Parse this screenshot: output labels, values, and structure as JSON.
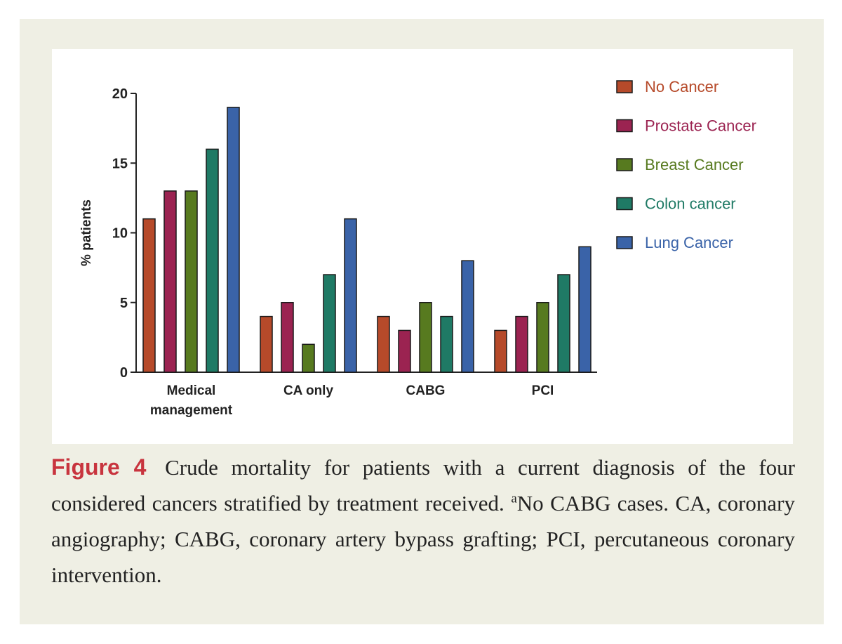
{
  "chart_data": {
    "type": "bar",
    "title": "",
    "xlabel": "",
    "ylabel": "% patients",
    "ylim": [
      0,
      20
    ],
    "yticks": [
      "0",
      "5",
      "10",
      "15",
      "20"
    ],
    "categories": [
      [
        "Medical",
        "management"
      ],
      [
        "CA only"
      ],
      [
        "CABG"
      ],
      [
        "PCI"
      ]
    ],
    "series": [
      {
        "name": "No Cancer",
        "color": "#b64a2a",
        "values": [
          11,
          4,
          4,
          3
        ]
      },
      {
        "name": "Prostate Cancer",
        "color": "#9b2351",
        "values": [
          13,
          5,
          3,
          4
        ]
      },
      {
        "name": "Breast Cancer",
        "color": "#577a1f",
        "values": [
          13,
          2,
          5,
          5
        ]
      },
      {
        "name": "Colon cancer",
        "color": "#1f7a65",
        "values": [
          16,
          7,
          4,
          7
        ]
      },
      {
        "name": "Lung Cancer",
        "color": "#3a63a8",
        "values": [
          19,
          11,
          8,
          9
        ]
      }
    ],
    "legend_position": "top-right",
    "grid": false
  },
  "caption": {
    "figure_label": "Figure 4",
    "text_before_sup": "Crude mortality for patients with a current diagnosis of the four considered cancers stratified by treatment received.",
    "superscript": "a",
    "text_after_sup": "No CABG cases. CA, coronary angiography; CABG, coronary artery bypass grafting; PCI, percutaneous coronary intervention."
  }
}
